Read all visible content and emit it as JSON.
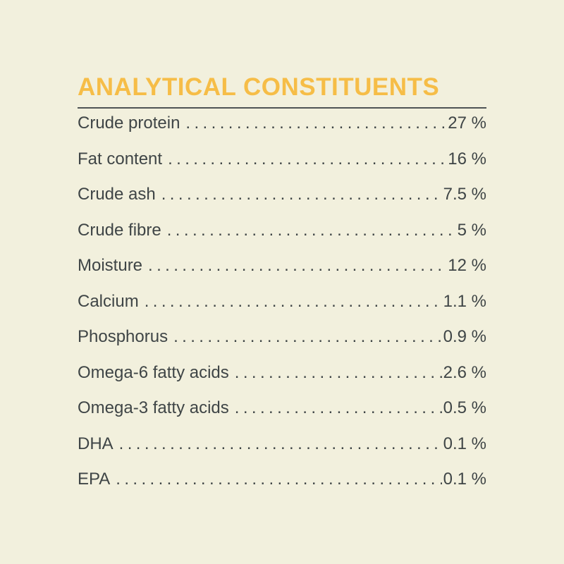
{
  "title": "ANALYTICAL CONSTITUENTS",
  "colors": {
    "background": "#f2f0dd",
    "title": "#f6bd47",
    "text": "#3f4546",
    "rule": "#4f5455"
  },
  "rows": [
    {
      "label": "Crude protein",
      "value": "27 %"
    },
    {
      "label": "Fat content",
      "value": "16 %"
    },
    {
      "label": "Crude ash",
      "value": "7.5 %"
    },
    {
      "label": "Crude fibre",
      "value": "5 %"
    },
    {
      "label": "Moisture",
      "value": "12 %"
    },
    {
      "label": "Calcium",
      "value": "1.1 %"
    },
    {
      "label": "Phosphorus",
      "value": "0.9 %"
    },
    {
      "label": "Omega-6 fatty acids",
      "value": "2.6 %"
    },
    {
      "label": "Omega-3 fatty acids",
      "value": "0.5 %"
    },
    {
      "label": "DHA",
      "value": "0.1 %"
    },
    {
      "label": "EPA",
      "value": "0.1 %"
    }
  ]
}
